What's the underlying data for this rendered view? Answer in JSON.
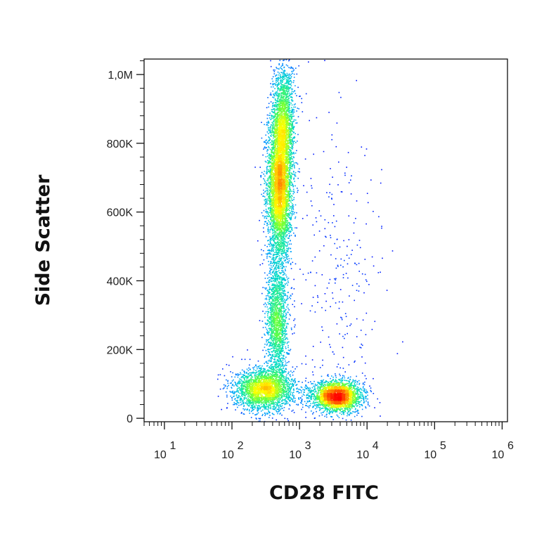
{
  "chart_data": {
    "type": "scatter",
    "title": "",
    "xlabel": "CD28 FITC",
    "ylabel": "Side Scatter",
    "x_scale": "log",
    "xlim": [
      5,
      1200000
    ],
    "ylim": [
      -10000,
      1045000
    ],
    "x_ticks": [
      {
        "value": 10,
        "base": "10",
        "exp": "1"
      },
      {
        "value": 100,
        "base": "10",
        "exp": "2"
      },
      {
        "value": 1000,
        "base": "10",
        "exp": "3"
      },
      {
        "value": 10000,
        "base": "10",
        "exp": "4"
      },
      {
        "value": 100000,
        "base": "10",
        "exp": "5"
      },
      {
        "value": 1000000,
        "base": "10",
        "exp": "6"
      }
    ],
    "y_ticks": [
      {
        "value": 0,
        "label": "0"
      },
      {
        "value": 200000,
        "label": "200K"
      },
      {
        "value": 400000,
        "label": "400K"
      },
      {
        "value": 600000,
        "label": "600K"
      },
      {
        "value": 800000,
        "label": "800K"
      },
      {
        "value": 1000000,
        "label": "1,0M"
      }
    ],
    "grid": false,
    "legend": "none",
    "color_scale": [
      "#0000ff",
      "#00a0ff",
      "#00e0c0",
      "#60ff40",
      "#ffff00",
      "#ff8000",
      "#ff0000"
    ],
    "populations": [
      {
        "name": "",
        "x_center": 500,
        "y_center": 680000,
        "x_spread_log": 0.09,
        "y_spread": 110000,
        "weight": 0.34
      },
      {
        "name": "",
        "x_center": 580,
        "y_center": 880000,
        "x_spread_log": 0.08,
        "y_spread": 80000,
        "weight": 0.1
      },
      {
        "name": "",
        "x_center": 460,
        "y_center": 280000,
        "x_spread_log": 0.08,
        "y_spread": 90000,
        "weight": 0.12
      },
      {
        "name": "",
        "x_center": 300,
        "y_center": 85000,
        "x_spread_log": 0.22,
        "y_spread": 30000,
        "weight": 0.18
      },
      {
        "name": "",
        "x_center": 3500,
        "y_center": 65000,
        "x_spread_log": 0.18,
        "y_spread": 22000,
        "weight": 0.2
      },
      {
        "name": "",
        "x_center": 4000,
        "y_center": 400000,
        "x_spread_log": 0.35,
        "y_spread": 250000,
        "weight": 0.02
      }
    ]
  }
}
